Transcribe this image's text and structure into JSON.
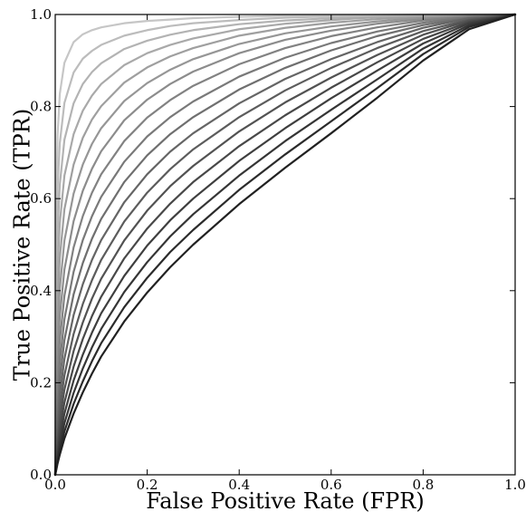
{
  "chart_data": {
    "type": "line",
    "xlabel": "False Positive Rate (FPR)",
    "ylabel": "True Positive Rate (TPR)",
    "xlim": [
      0.0,
      1.0
    ],
    "ylim": [
      0.0,
      1.0
    ],
    "x_ticks": [
      "0.0",
      "0.2",
      "0.4",
      "0.6",
      "0.8",
      "1.0"
    ],
    "y_ticks": [
      "0.0",
      "0.2",
      "0.4",
      "0.6",
      "0.8",
      "1.0"
    ],
    "grid": false,
    "legend": "none",
    "x": [
      0,
      0.002,
      0.005,
      0.01,
      0.02,
      0.04,
      0.06,
      0.08,
      0.1,
      0.15,
      0.2,
      0.25,
      0.3,
      0.4,
      0.5,
      0.6,
      0.7,
      0.8,
      0.9,
      1.0
    ],
    "series": [
      {
        "color": "#c6c6c6",
        "values": [
          0,
          0.586,
          0.735,
          0.828,
          0.895,
          0.94,
          0.957,
          0.966,
          0.972,
          0.981,
          0.986,
          0.989,
          0.992,
          0.995,
          0.997,
          0.998,
          0.999,
          1.0,
          1.0,
          1.0
        ]
      },
      {
        "color": "#bcbcbc",
        "values": [
          0,
          0.471,
          0.621,
          0.721,
          0.808,
          0.874,
          0.904,
          0.921,
          0.934,
          0.954,
          0.966,
          0.975,
          0.981,
          0.988,
          0.993,
          0.996,
          0.998,
          0.999,
          1.0,
          1.0
        ]
      },
      {
        "color": "#b3b3b3",
        "values": [
          0,
          0.379,
          0.525,
          0.631,
          0.728,
          0.807,
          0.849,
          0.875,
          0.894,
          0.925,
          0.943,
          0.956,
          0.966,
          0.979,
          0.987,
          0.992,
          0.996,
          0.998,
          0.999,
          1.0
        ]
      },
      {
        "color": "#a9a9a9",
        "values": [
          0,
          0.305,
          0.443,
          0.547,
          0.65,
          0.74,
          0.791,
          0.824,
          0.849,
          0.89,
          0.916,
          0.934,
          0.948,
          0.968,
          0.98,
          0.988,
          0.994,
          0.997,
          0.999,
          1.0
        ]
      },
      {
        "color": "#9f9f9f",
        "values": [
          0,
          0.243,
          0.371,
          0.472,
          0.577,
          0.674,
          0.732,
          0.772,
          0.801,
          0.852,
          0.885,
          0.909,
          0.927,
          0.954,
          0.971,
          0.982,
          0.99,
          0.995,
          0.998,
          1.0
        ]
      },
      {
        "color": "#969696",
        "values": [
          0,
          0.193,
          0.309,
          0.405,
          0.509,
          0.611,
          0.674,
          0.719,
          0.753,
          0.812,
          0.851,
          0.88,
          0.903,
          0.936,
          0.959,
          0.974,
          0.985,
          0.993,
          0.998,
          1.0
        ]
      },
      {
        "color": "#8c8c8c",
        "values": [
          0,
          0.152,
          0.257,
          0.345,
          0.446,
          0.551,
          0.617,
          0.665,
          0.703,
          0.77,
          0.815,
          0.849,
          0.876,
          0.916,
          0.945,
          0.965,
          0.98,
          0.99,
          0.997,
          1.0
        ]
      },
      {
        "color": "#828282",
        "values": [
          0,
          0.12,
          0.211,
          0.292,
          0.389,
          0.494,
          0.562,
          0.613,
          0.653,
          0.725,
          0.776,
          0.814,
          0.845,
          0.892,
          0.927,
          0.953,
          0.972,
          0.987,
          0.996,
          1.0
        ]
      },
      {
        "color": "#797979",
        "values": [
          0,
          0.094,
          0.173,
          0.246,
          0.338,
          0.441,
          0.51,
          0.562,
          0.604,
          0.68,
          0.735,
          0.777,
          0.811,
          0.865,
          0.906,
          0.938,
          0.963,
          0.982,
          0.995,
          1.0
        ]
      },
      {
        "color": "#6f6f6f",
        "values": [
          0,
          0.073,
          0.141,
          0.207,
          0.293,
          0.392,
          0.46,
          0.513,
          0.556,
          0.636,
          0.694,
          0.74,
          0.777,
          0.837,
          0.884,
          0.922,
          0.953,
          0.977,
          0.993,
          1.0
        ]
      },
      {
        "color": "#656565",
        "values": [
          0,
          0.057,
          0.115,
          0.173,
          0.252,
          0.347,
          0.414,
          0.467,
          0.51,
          0.592,
          0.653,
          0.702,
          0.742,
          0.807,
          0.86,
          0.903,
          0.94,
          0.971,
          0.992,
          1.0
        ]
      },
      {
        "color": "#5c5c5c",
        "values": [
          0,
          0.044,
          0.093,
          0.144,
          0.216,
          0.306,
          0.371,
          0.423,
          0.467,
          0.55,
          0.613,
          0.664,
          0.707,
          0.777,
          0.835,
          0.884,
          0.927,
          0.964,
          0.989,
          1.0
        ]
      },
      {
        "color": "#525252",
        "values": [
          0,
          0.034,
          0.075,
          0.12,
          0.185,
          0.269,
          0.331,
          0.383,
          0.426,
          0.509,
          0.574,
          0.627,
          0.671,
          0.746,
          0.809,
          0.863,
          0.912,
          0.956,
          0.987,
          1.0
        ]
      },
      {
        "color": "#484848",
        "values": [
          0,
          0.026,
          0.06,
          0.099,
          0.157,
          0.235,
          0.295,
          0.345,
          0.387,
          0.47,
          0.535,
          0.589,
          0.636,
          0.714,
          0.781,
          0.841,
          0.896,
          0.947,
          0.984,
          1.0
        ]
      },
      {
        "color": "#3e3e3e",
        "values": [
          0,
          0.02,
          0.048,
          0.081,
          0.133,
          0.205,
          0.261,
          0.309,
          0.351,
          0.432,
          0.498,
          0.553,
          0.6,
          0.682,
          0.753,
          0.818,
          0.878,
          0.937,
          0.981,
          1.0
        ]
      },
      {
        "color": "#353535",
        "values": [
          0,
          0.015,
          0.038,
          0.066,
          0.112,
          0.178,
          0.231,
          0.277,
          0.317,
          0.397,
          0.462,
          0.518,
          0.566,
          0.65,
          0.725,
          0.793,
          0.859,
          0.926,
          0.977,
          1.0
        ]
      },
      {
        "color": "#2b2b2b",
        "values": [
          0,
          0.012,
          0.03,
          0.054,
          0.094,
          0.154,
          0.203,
          0.247,
          0.286,
          0.364,
          0.428,
          0.484,
          0.532,
          0.619,
          0.696,
          0.768,
          0.84,
          0.914,
          0.973,
          1.0
        ]
      },
      {
        "color": "#212121",
        "values": [
          0,
          0.009,
          0.024,
          0.044,
          0.079,
          0.133,
          0.179,
          0.22,
          0.257,
          0.333,
          0.396,
          0.451,
          0.5,
          0.588,
          0.667,
          0.742,
          0.819,
          0.9,
          0.968,
          1.0
        ]
      }
    ]
  }
}
